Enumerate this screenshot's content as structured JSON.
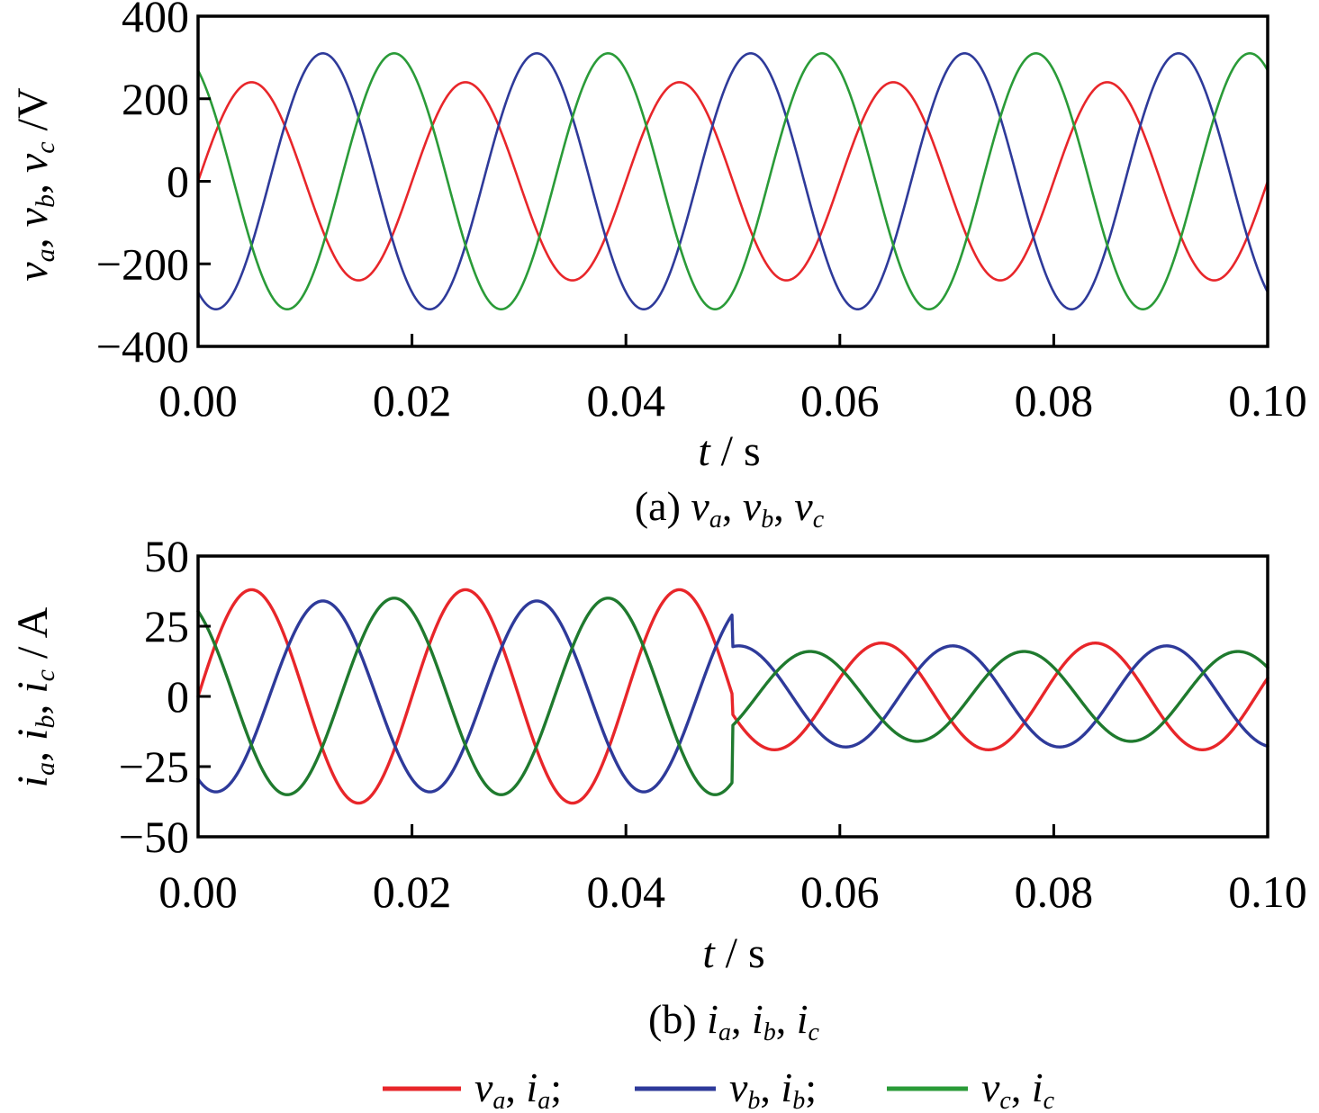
{
  "chart_data": [
    {
      "type": "line",
      "panel": "a",
      "caption": "(a) va, vb, vc",
      "xlabel": "t / s",
      "ylabel": "va, vb, vc /V",
      "xlim": [
        0.0,
        0.1
      ],
      "ylim": [
        -400,
        400
      ],
      "xticks": [
        "0.00",
        "0.02",
        "0.04",
        "0.06",
        "0.08",
        "0.10"
      ],
      "yticks": [
        "400",
        "200",
        "0",
        "−200",
        "−400"
      ],
      "frequency_hz": 50,
      "series": [
        {
          "name": "va",
          "color": "#e8262a",
          "amplitude": 240,
          "phase_deg": 0
        },
        {
          "name": "vb",
          "color": "#2e3a9a",
          "amplitude": 310,
          "phase_deg": -120
        },
        {
          "name": "vc",
          "color": "#2a9b38",
          "amplitude": 310,
          "phase_deg": 120
        }
      ]
    },
    {
      "type": "line",
      "panel": "b",
      "caption": "(b) ia, ib, ic",
      "xlabel": "t / s",
      "ylabel": "ia, ib, ic / A",
      "xlim": [
        0.0,
        0.1
      ],
      "ylim": [
        -50,
        50
      ],
      "xticks": [
        "0.00",
        "0.02",
        "0.04",
        "0.06",
        "0.08",
        "0.10"
      ],
      "yticks": [
        "50",
        "25",
        "0",
        "−25",
        "−50"
      ],
      "frequency_hz": 50,
      "step_time": 0.05,
      "series": [
        {
          "name": "ia",
          "color": "#e8262a",
          "amplitude_before": 38,
          "amplitude_after": 19,
          "phase_deg": 0
        },
        {
          "name": "ib",
          "color": "#2e3a9a",
          "amplitude_before": 34,
          "amplitude_after": 18,
          "phase_deg": -120
        },
        {
          "name": "ic",
          "color": "#1f7a2e",
          "amplitude_before": 35,
          "amplitude_after": 16,
          "phase_deg": 120
        }
      ]
    }
  ],
  "legend": [
    {
      "v": "v",
      "vsub": "a",
      "i": "i",
      "isub": "a",
      "sep": ";",
      "color": "#e8262a"
    },
    {
      "v": "v",
      "vsub": "b",
      "i": "i",
      "isub": "b",
      "sep": ";",
      "color": "#2e3a9a"
    },
    {
      "v": "v",
      "vsub": "c",
      "i": "i",
      "isub": "c",
      "sep": "",
      "color": "#2a9b38"
    }
  ]
}
